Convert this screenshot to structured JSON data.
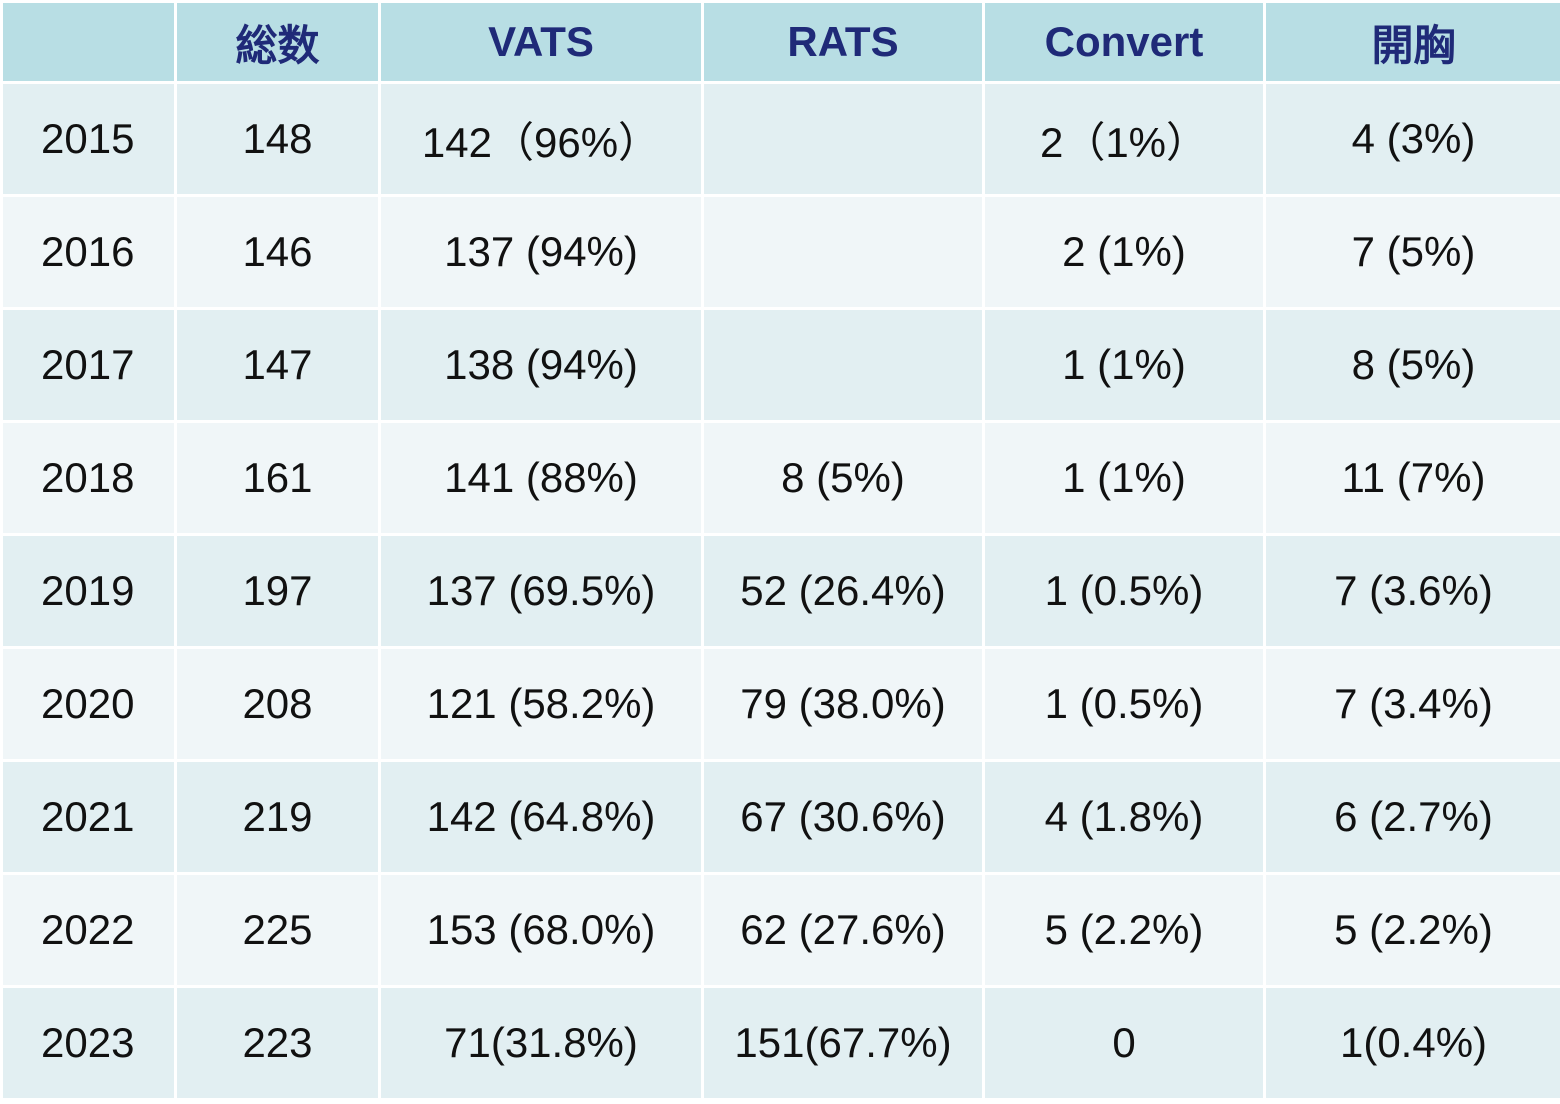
{
  "table": {
    "headers": [
      "",
      "総数",
      "VATS",
      "RATS",
      "Convert",
      "開胸"
    ],
    "rows": [
      [
        "2015",
        "148",
        "142（96%）",
        "",
        "2（1%）",
        "4 (3%)"
      ],
      [
        "2016",
        "146",
        "137 (94%)",
        "",
        "2 (1%)",
        "7 (5%)"
      ],
      [
        "2017",
        "147",
        "138 (94%)",
        "",
        "1 (1%)",
        "8 (5%)"
      ],
      [
        "2018",
        "161",
        "141 (88%)",
        "8 (5%)",
        "1 (1%)",
        "11 (7%)"
      ],
      [
        "2019",
        "197",
        "137 (69.5%)",
        "52 (26.4%)",
        "1 (0.5%)",
        "7 (3.6%)"
      ],
      [
        "2020",
        "208",
        "121 (58.2%)",
        "79 (38.0%)",
        "1 (0.5%)",
        "7 (3.4%)"
      ],
      [
        "2021",
        "219",
        "142 (64.8%)",
        "67 (30.6%)",
        "4 (1.8%)",
        "6 (2.7%)"
      ],
      [
        "2022",
        "225",
        "153 (68.0%)",
        "62 (27.6%)",
        "5 (2.2%)",
        "5 (2.2%)"
      ],
      [
        "2023",
        "223",
        "71(31.8%)",
        "151(67.7%)",
        "0",
        "1(0.4%)"
      ]
    ]
  }
}
